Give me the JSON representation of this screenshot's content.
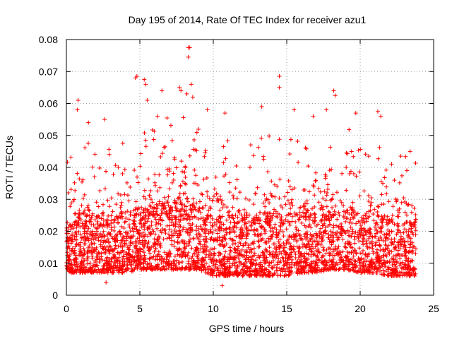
{
  "chart_data": {
    "type": "scatter",
    "title": "Day 195 of 2014, Rate Of TEC Index for receiver azu1",
    "xlabel": "GPS time / hours",
    "ylabel": "ROTI / TECUs",
    "xlim": [
      0,
      25
    ],
    "ylim": [
      0,
      0.08
    ],
    "x_ticks": [
      0,
      5,
      10,
      15,
      20,
      25
    ],
    "y_ticks": [
      0,
      0.01,
      0.02,
      0.03,
      0.04,
      0.05,
      0.06,
      0.07,
      0.08
    ],
    "x_tick_labels": [
      "0",
      "5",
      "10",
      "15",
      "20",
      "25"
    ],
    "y_tick_labels": [
      "0",
      "0.01",
      "0.02",
      "0.03",
      "0.04",
      "0.05",
      "0.06",
      "0.07",
      "0.08"
    ],
    "grid": true,
    "marker": "plus",
    "series_color": "#ff0000",
    "x_data_range": [
      0,
      23.8
    ],
    "baseline_envelope": {
      "x": [
        0,
        1,
        2,
        3,
        4,
        5,
        6,
        7,
        8,
        9,
        10,
        11,
        12,
        13,
        14,
        15,
        16,
        17,
        18,
        19,
        20,
        21,
        22,
        23,
        23.8
      ],
      "low": [
        0.007,
        0.007,
        0.007,
        0.007,
        0.007,
        0.008,
        0.008,
        0.008,
        0.008,
        0.008,
        0.006,
        0.006,
        0.006,
        0.006,
        0.006,
        0.006,
        0.007,
        0.007,
        0.008,
        0.008,
        0.007,
        0.007,
        0.006,
        0.006,
        0.006
      ],
      "typical_high": [
        0.028,
        0.033,
        0.03,
        0.032,
        0.033,
        0.036,
        0.038,
        0.04,
        0.042,
        0.038,
        0.03,
        0.034,
        0.032,
        0.034,
        0.035,
        0.033,
        0.034,
        0.036,
        0.038,
        0.037,
        0.033,
        0.034,
        0.03,
        0.03,
        0.028
      ]
    },
    "notable_points": [
      {
        "x": 0.8,
        "y": 0.061
      },
      {
        "x": 0.75,
        "y": 0.058
      },
      {
        "x": 1.5,
        "y": 0.054
      },
      {
        "x": 2.6,
        "y": 0.055
      },
      {
        "x": 2.7,
        "y": 0.004
      },
      {
        "x": 4.7,
        "y": 0.068
      },
      {
        "x": 4.8,
        "y": 0.0685
      },
      {
        "x": 5.3,
        "y": 0.0675
      },
      {
        "x": 5.4,
        "y": 0.066
      },
      {
        "x": 5.5,
        "y": 0.061
      },
      {
        "x": 6.2,
        "y": 0.056
      },
      {
        "x": 6.5,
        "y": 0.064
      },
      {
        "x": 7.7,
        "y": 0.065
      },
      {
        "x": 7.8,
        "y": 0.064
      },
      {
        "x": 8.2,
        "y": 0.063
      },
      {
        "x": 8.3,
        "y": 0.0775
      },
      {
        "x": 8.4,
        "y": 0.0775
      },
      {
        "x": 8.3,
        "y": 0.0745
      },
      {
        "x": 8.5,
        "y": 0.066
      },
      {
        "x": 8.6,
        "y": 0.062
      },
      {
        "x": 9.6,
        "y": 0.058
      },
      {
        "x": 10.6,
        "y": 0.003
      },
      {
        "x": 10.8,
        "y": 0.057
      },
      {
        "x": 13.3,
        "y": 0.059
      },
      {
        "x": 14.5,
        "y": 0.0685
      },
      {
        "x": 14.5,
        "y": 0.065
      },
      {
        "x": 15.5,
        "y": 0.058
      },
      {
        "x": 16.8,
        "y": 0.056
      },
      {
        "x": 17.7,
        "y": 0.058
      },
      {
        "x": 18.2,
        "y": 0.064
      },
      {
        "x": 18.3,
        "y": 0.0625
      },
      {
        "x": 19.7,
        "y": 0.057
      },
      {
        "x": 21.2,
        "y": 0.0575
      },
      {
        "x": 21.4,
        "y": 0.056
      },
      {
        "x": 23.4,
        "y": 0.045
      }
    ]
  }
}
